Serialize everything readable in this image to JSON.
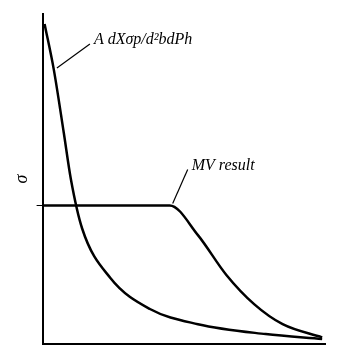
{
  "chart_data": {
    "type": "line",
    "y_label": "σ",
    "series": [
      {
        "name": "A dXσp/d²bdPh",
        "color": "#000000",
        "x": [
          0.07,
          0.4,
          0.75,
          1.0,
          1.4,
          2.4,
          3.8,
          5.5,
          7.9,
          9.9
        ],
        "values": [
          9.7,
          8.3,
          6.4,
          5.0,
          3.5,
          2.0,
          1.06,
          0.6,
          0.3,
          0.15
        ]
      },
      {
        "name": "MV result",
        "color": "#000000",
        "x": [
          0.0,
          2.0,
          4.5,
          5.5,
          6.5,
          7.5,
          8.5,
          9.9
        ],
        "values": [
          4.2,
          4.2,
          4.2,
          3.3,
          2.1,
          1.2,
          0.6,
          0.2
        ]
      }
    ],
    "xlim": [
      0,
      10
    ],
    "ylim": [
      0,
      10
    ],
    "xticks": [],
    "yticks": [
      4.2
    ],
    "grid": false,
    "tick_labels": false
  }
}
